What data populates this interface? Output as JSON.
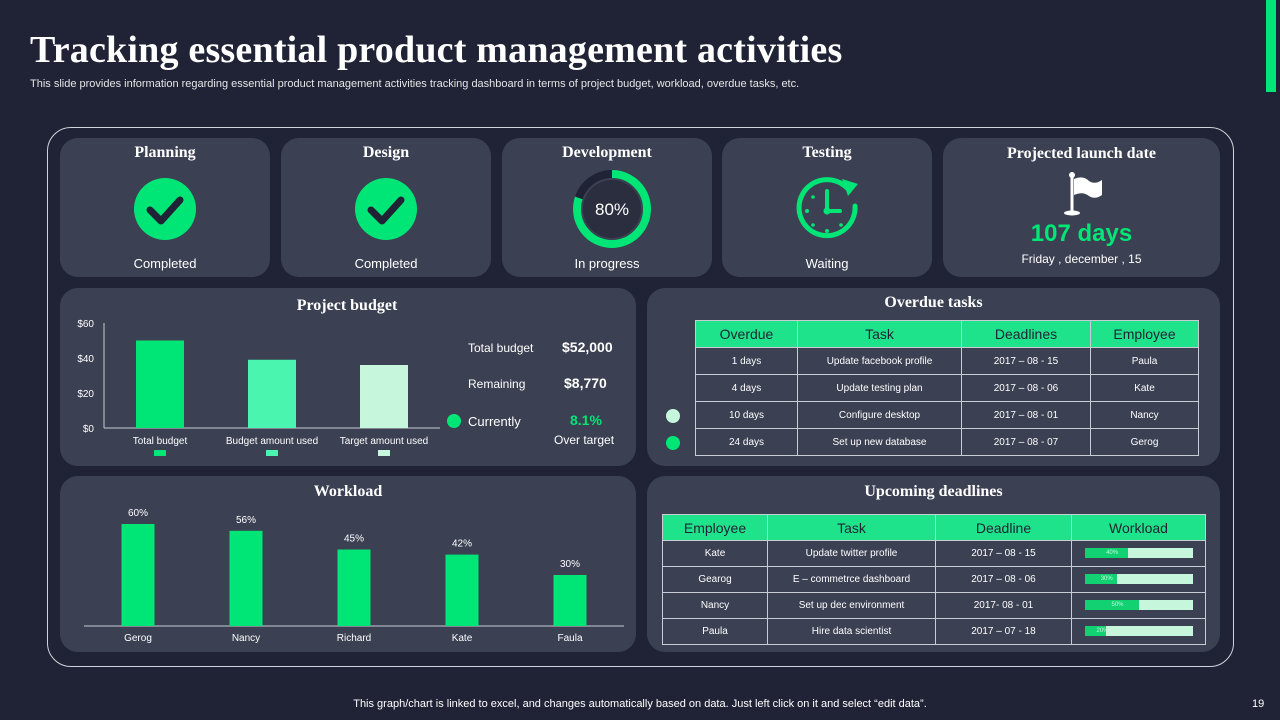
{
  "title": "Tracking essential product management activities",
  "subtitle": "This slide provides information regarding essential product management activities tracking dashboard in terms of project budget, workload, overdue tasks, etc.",
  "colors": {
    "accent": "#00e676",
    "card": "#3b4052",
    "background": "#1f2335",
    "mint": "#4af5b0",
    "pale": "#c6f7dc"
  },
  "phases": [
    {
      "name": "Planning",
      "status": "Completed",
      "icon": "check-circle-icon"
    },
    {
      "name": "Design",
      "status": "Completed",
      "icon": "check-circle-icon"
    },
    {
      "name": "Development",
      "status": "In progress",
      "progress_label": "80%",
      "progress": 0.8
    },
    {
      "name": "Testing",
      "status": "Waiting",
      "icon": "clock-icon"
    }
  ],
  "launch": {
    "title": "Projected launch date",
    "days": "107 days",
    "date": "Friday , december , 15",
    "icon": "flag-icon"
  },
  "budget": {
    "title": "Project budget",
    "total_label": "Total budget",
    "total_value": "$52,000",
    "remaining_label": "Remaining",
    "remaining_value": "$8,770",
    "currently_label": "Currently",
    "currently_value": "8.1%",
    "over_target": "Over target"
  },
  "overdue": {
    "title": "Overdue tasks",
    "headers": [
      "Overdue",
      "Task",
      "Deadlines",
      "Employee"
    ],
    "rows": [
      [
        "1 days",
        "Update facebook profile",
        "2017 – 08 - 15",
        "Paula"
      ],
      [
        "4 days",
        "Update testing plan",
        "2017 – 08 - 06",
        "Kate"
      ],
      [
        "10 days",
        "Configure desktop",
        "2017 – 08 - 01",
        "Nancy"
      ],
      [
        "24 days",
        "Set up new database",
        "2017 – 08 - 07",
        "Gerog"
      ]
    ]
  },
  "upcoming": {
    "title": "Upcoming deadlines",
    "headers": [
      "Employee",
      "Task",
      "Deadline",
      "Workload"
    ],
    "rows": [
      {
        "employee": "Kate",
        "task": "Update twitter profile",
        "deadline": "2017 – 08 - 15",
        "workload_label": "40%",
        "workload": 0.4
      },
      {
        "employee": "Gearog",
        "task": "E – commetrce dashboard",
        "deadline": "2017 – 08 - 06",
        "workload_label": "30%",
        "workload": 0.3
      },
      {
        "employee": "Nancy",
        "task": "Set up  dec environment",
        "deadline": "2017- 08 - 01",
        "workload_label": "50%",
        "workload": 0.5
      },
      {
        "employee": "Paula",
        "task": "Hire data scientist",
        "deadline": "2017 – 07 - 18",
        "workload_label": "20%",
        "workload": 0.2
      }
    ]
  },
  "workload_title": "Workload",
  "chart_data": [
    {
      "type": "bar",
      "title": "Project budget",
      "categories": [
        "Total budget",
        "Budget amount used",
        "Target amount used"
      ],
      "values": [
        50,
        39,
        36
      ],
      "colors": [
        "#00e676",
        "#4af5b0",
        "#c6f7dc"
      ],
      "ylim": [
        0,
        60
      ],
      "yticks": [
        "$0",
        "$20",
        "$40",
        "$60"
      ],
      "ytick_values": [
        0,
        20,
        40,
        60
      ]
    },
    {
      "type": "bar",
      "title": "Workload",
      "categories": [
        "Gerog",
        "Nancy",
        "Richard",
        "Kate",
        "Faula"
      ],
      "values": [
        60,
        56,
        45,
        42,
        30
      ],
      "labels": [
        "60%",
        "56%",
        "45%",
        "42%",
        "30%"
      ],
      "ylim": [
        0,
        60
      ]
    }
  ],
  "footer_note": "This graph/chart is linked to excel,  and changes automatically based on data. Just left click on it and select “edit data”.",
  "page_number": "19"
}
